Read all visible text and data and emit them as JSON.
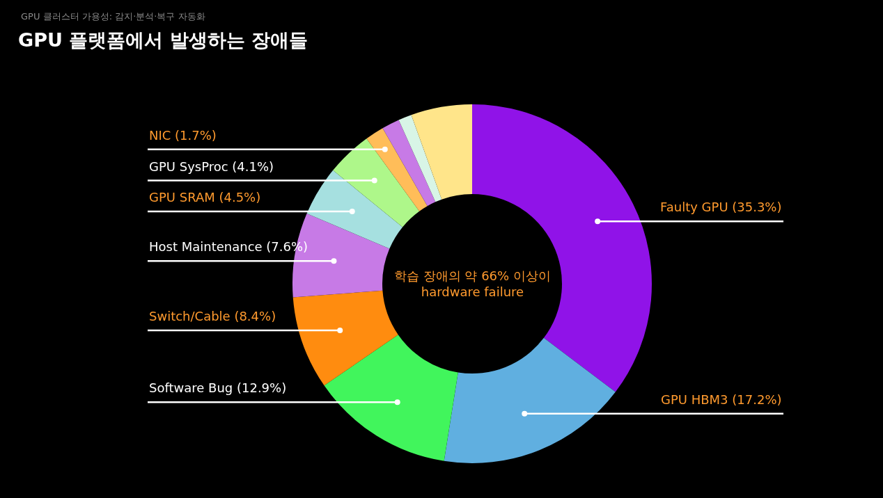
{
  "chart_data": {
    "type": "donut",
    "subtitle": "GPU 클러스터 가용성: 감지·분석·복구 자동화",
    "title": "GPU 플랫폼에서 발생하는 장애들",
    "categories": [
      "Faulty GPU",
      "GPU HBM3",
      "Software Bug",
      "Switch/Cable",
      "Host Maintenance",
      "GPU SRAM",
      "GPU SysProc",
      "NIC",
      null,
      null,
      null
    ],
    "values": [
      35.3,
      17.2,
      12.9,
      8.4,
      7.6,
      4.5,
      4.1,
      1.7,
      1.6,
      1.2,
      5.5
    ],
    "value_labels": [
      "(35.3%)",
      "(17.2%)",
      "(12.9%)",
      "(8.4%)",
      "(7.6%)",
      "(4.5%)",
      "(4.1%)",
      "(1.7%)",
      null,
      null,
      null
    ],
    "colors": [
      "#9013e8",
      "#60afe0",
      "#41f55c",
      "#ff8c0f",
      "#c77ae6",
      "#a6e0e0",
      "#aef78a",
      "#ffbd59",
      "#c77ae6",
      "#d8f5e6",
      "#ffe58a"
    ],
    "annotations": [
      "학습 장애의 약 66% 이상이\nhardware failure"
    ],
    "legend": false
  }
}
